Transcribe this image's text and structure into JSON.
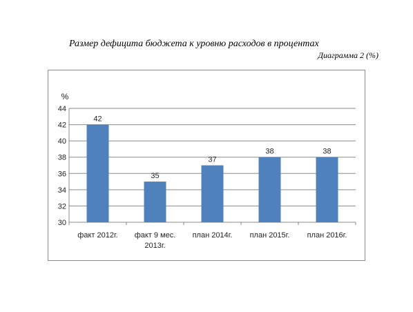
{
  "header": {
    "title": "Размер дефицита бюджета к уровню расходов в процентах",
    "subtitle": "Диаграмма 2 (%)"
  },
  "chart_data": {
    "type": "bar",
    "title": "Размер дефицита бюджета к уровню расходов в процентах",
    "ylabel": "%",
    "xlabel": "",
    "categories": [
      "факт 2012г.",
      "факт 9 мес. 2013г.",
      "план 2014г.",
      "план 2015г.",
      "план 2016г."
    ],
    "values": [
      42,
      35,
      37,
      38,
      38
    ],
    "ylim": [
      30,
      44
    ],
    "yticks": [
      30,
      32,
      34,
      36,
      38,
      40,
      42,
      44
    ],
    "grid": true,
    "legend": "none",
    "bar_color": "#4f81bd"
  }
}
